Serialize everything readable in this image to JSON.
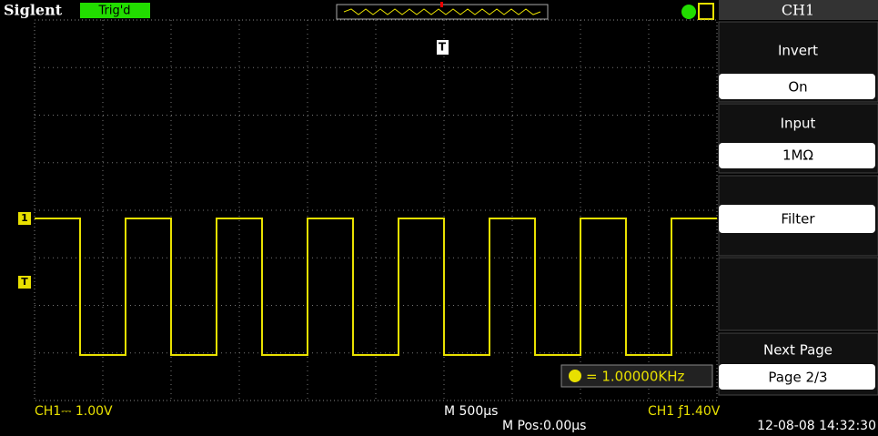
{
  "header": {
    "brand": "Siglent",
    "status": "Trig'd",
    "menu_title": "CH1"
  },
  "markers": {
    "trigger_position": "T",
    "channel": "1",
    "trigger_level": "T"
  },
  "menu": [
    {
      "label": "Invert",
      "value": "On"
    },
    {
      "label": "Input",
      "value": "1MΩ"
    },
    {
      "value": "Filter"
    },
    {
      "label": "Next Page",
      "value": "Page 2/3"
    }
  ],
  "frequency": "= 1.00000KHz",
  "status_bar": {
    "channel_scale": "CH1⎓ 1.00V",
    "timebase": "M 500μs",
    "position": "M Pos:0.00μs",
    "trigger": "CH1 ƒ1.40V",
    "datetime": "12-08-08 14:32:30"
  }
}
